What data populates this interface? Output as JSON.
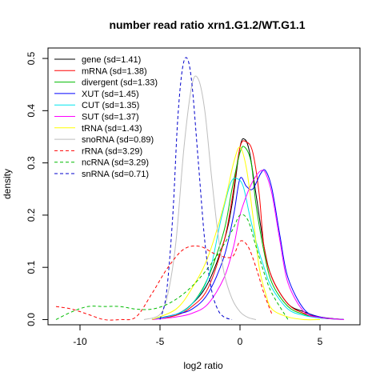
{
  "chart_data": {
    "type": "line",
    "title": "number read ratio xrn1.G1.2/WT.G1.1",
    "xlabel": "log2 ratio",
    "ylabel": "density",
    "xlim": [
      -12,
      7.5
    ],
    "ylim": [
      -0.01,
      0.52
    ],
    "xticks": [
      -10,
      -5,
      0,
      5
    ],
    "yticks": [
      0.0,
      0.1,
      0.2,
      0.3,
      0.4,
      0.5
    ],
    "xtick_labels": [
      "-10",
      "-5",
      "0",
      "5"
    ],
    "ytick_labels": [
      "0.0",
      "0.1",
      "0.2",
      "0.3",
      "0.4",
      "0.5"
    ],
    "grid": false,
    "legend_position": "top-left",
    "series": [
      {
        "name": "gene (sd=1.41)",
        "color": "#000000",
        "dash": "solid",
        "x": [
          -5.5,
          -4.0,
          -3.0,
          -2.0,
          -1.0,
          -0.5,
          0.0,
          0.3,
          0.6,
          1.0,
          1.5,
          2.0,
          3.0,
          4.0,
          5.0,
          6.5
        ],
        "y": [
          0.0,
          0.01,
          0.03,
          0.07,
          0.15,
          0.22,
          0.33,
          0.345,
          0.32,
          0.24,
          0.14,
          0.08,
          0.03,
          0.015,
          0.005,
          0.0
        ]
      },
      {
        "name": "mRNA (sd=1.38)",
        "color": "#ff0000",
        "dash": "solid",
        "x": [
          -5.5,
          -4.0,
          -3.0,
          -2.0,
          -1.0,
          -0.5,
          0.0,
          0.4,
          0.8,
          1.2,
          1.5,
          2.0,
          3.0,
          4.0,
          5.0,
          6.5
        ],
        "y": [
          0.0,
          0.008,
          0.025,
          0.06,
          0.15,
          0.23,
          0.33,
          0.34,
          0.32,
          0.24,
          0.14,
          0.08,
          0.03,
          0.012,
          0.004,
          0.0
        ]
      },
      {
        "name": "divergent (sd=1.33)",
        "color": "#00bb00",
        "dash": "solid",
        "x": [
          -5.5,
          -4.0,
          -3.0,
          -2.0,
          -1.0,
          -0.5,
          0.0,
          0.3,
          0.7,
          1.0,
          1.5,
          2.0,
          3.0,
          4.0,
          5.0,
          6.5
        ],
        "y": [
          0.0,
          0.01,
          0.03,
          0.08,
          0.17,
          0.25,
          0.32,
          0.33,
          0.3,
          0.22,
          0.13,
          0.07,
          0.025,
          0.01,
          0.003,
          0.0
        ]
      },
      {
        "name": "XUT (sd=1.45)",
        "color": "#0000ff",
        "dash": "solid",
        "x": [
          -5.5,
          -4.0,
          -3.0,
          -2.0,
          -1.0,
          -0.4,
          0.0,
          0.4,
          0.8,
          1.3,
          1.6,
          2.0,
          2.5,
          3.0,
          4.0,
          5.0,
          6.5
        ],
        "y": [
          0.0,
          0.01,
          0.02,
          0.05,
          0.12,
          0.2,
          0.27,
          0.255,
          0.25,
          0.28,
          0.285,
          0.25,
          0.16,
          0.08,
          0.02,
          0.005,
          0.0
        ]
      },
      {
        "name": "CUT (sd=1.35)",
        "color": "#00e5ee",
        "dash": "solid",
        "x": [
          -5.5,
          -4.0,
          -3.0,
          -2.0,
          -1.2,
          -0.6,
          -0.2,
          0.2,
          0.6,
          1.0,
          1.5,
          2.0,
          3.0,
          4.0,
          5.0,
          6.5
        ],
        "y": [
          0.0,
          0.01,
          0.03,
          0.08,
          0.19,
          0.26,
          0.27,
          0.255,
          0.2,
          0.15,
          0.1,
          0.06,
          0.02,
          0.008,
          0.003,
          0.0
        ]
      },
      {
        "name": "SUT (sd=1.37)",
        "color": "#ff00ff",
        "dash": "solid",
        "x": [
          -5.5,
          -4.0,
          -3.0,
          -2.0,
          -1.0,
          -0.4,
          0.0,
          0.5,
          0.9,
          1.3,
          1.6,
          2.0,
          2.5,
          3.0,
          4.0,
          5.0,
          6.5
        ],
        "y": [
          0.0,
          0.005,
          0.012,
          0.03,
          0.08,
          0.14,
          0.2,
          0.245,
          0.27,
          0.285,
          0.28,
          0.24,
          0.15,
          0.07,
          0.015,
          0.004,
          0.0
        ]
      },
      {
        "name": "tRNA (sd=1.43)",
        "color": "#ffff00",
        "dash": "solid",
        "x": [
          -5.5,
          -4.0,
          -3.0,
          -2.0,
          -1.0,
          -0.4,
          0.0,
          0.4,
          0.8,
          1.2,
          1.6,
          2.0,
          3.0,
          4.0,
          5.0
        ],
        "y": [
          0.0,
          0.02,
          0.06,
          0.12,
          0.22,
          0.3,
          0.33,
          0.29,
          0.2,
          0.1,
          0.05,
          0.02,
          0.005,
          0.0,
          0.0
        ]
      },
      {
        "name": "snoRNA (sd=0.89)",
        "color": "#bebebe",
        "dash": "solid",
        "x": [
          -6.0,
          -5.0,
          -4.5,
          -4.0,
          -3.5,
          -3.0,
          -2.6,
          -2.2,
          -1.8,
          -1.4,
          -1.0,
          -0.5,
          0.0,
          0.5,
          1.0
        ],
        "y": [
          0.0,
          0.01,
          0.05,
          0.15,
          0.33,
          0.45,
          0.46,
          0.4,
          0.28,
          0.17,
          0.09,
          0.04,
          0.015,
          0.004,
          0.0
        ]
      },
      {
        "name": "rRNA (sd=3.29)",
        "color": "#ff0000",
        "dash": "dashed",
        "x": [
          -11.5,
          -10.5,
          -9.5,
          -8.5,
          -7.5,
          -6.5,
          -5.5,
          -4.5,
          -3.5,
          -2.5,
          -1.5,
          -0.5,
          0.0,
          0.5,
          1.0,
          1.5,
          2.0
        ],
        "y": [
          0.025,
          0.02,
          0.01,
          0.0,
          0.0,
          0.005,
          0.05,
          0.1,
          0.135,
          0.14,
          0.125,
          0.12,
          0.15,
          0.14,
          0.1,
          0.05,
          0.01
        ]
      },
      {
        "name": "ncRNA (sd=3.29)",
        "color": "#00bb00",
        "dash": "dashed",
        "x": [
          -11.5,
          -10.5,
          -9.5,
          -8.5,
          -7.5,
          -6.5,
          -5.5,
          -4.5,
          -3.5,
          -2.5,
          -1.5,
          -0.5,
          0.0,
          0.5,
          1.0,
          1.5,
          2.0,
          3.0
        ],
        "y": [
          0.0,
          0.015,
          0.025,
          0.025,
          0.025,
          0.02,
          0.02,
          0.03,
          0.05,
          0.08,
          0.12,
          0.17,
          0.2,
          0.19,
          0.14,
          0.09,
          0.05,
          0.0
        ]
      },
      {
        "name": "snRNA (sd=0.71)",
        "color": "#0000cc",
        "dash": "dashed",
        "x": [
          -5.0,
          -4.6,
          -4.2,
          -3.9,
          -3.6,
          -3.3,
          -3.0,
          -2.6,
          -2.2,
          -1.8,
          -1.4,
          -1.0,
          -0.5
        ],
        "y": [
          0.0,
          0.05,
          0.2,
          0.38,
          0.48,
          0.5,
          0.45,
          0.3,
          0.15,
          0.06,
          0.02,
          0.005,
          0.0
        ]
      }
    ]
  }
}
